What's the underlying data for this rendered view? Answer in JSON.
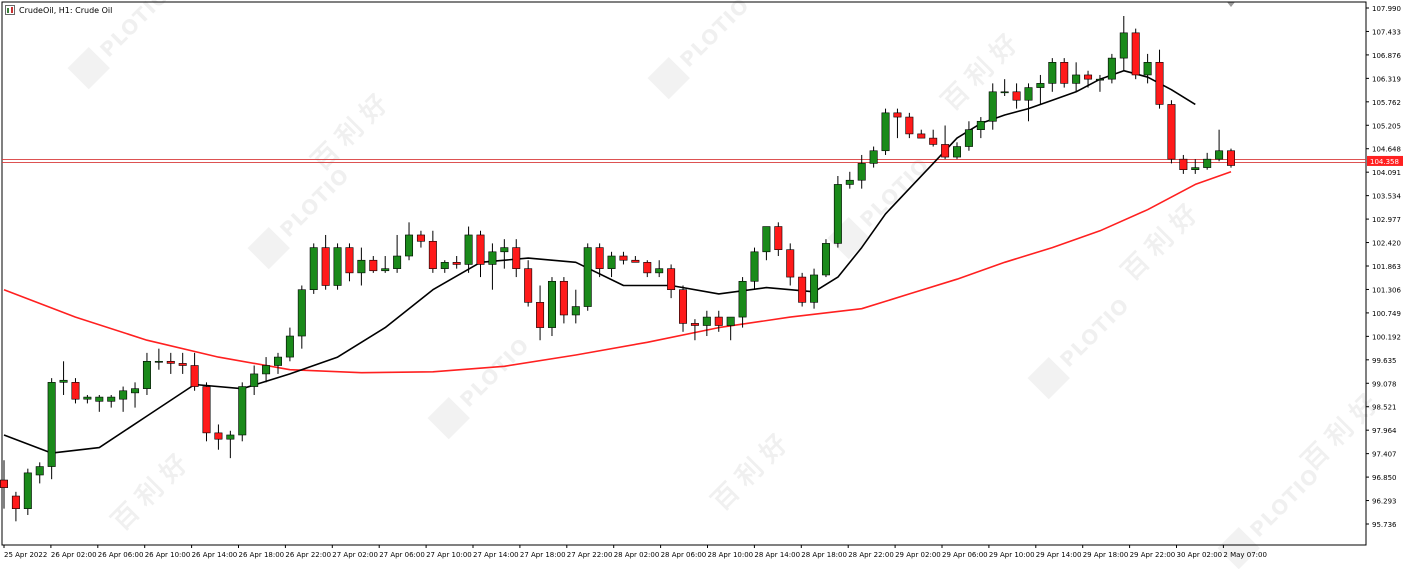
{
  "window": {
    "title": "CrudeOil, H1:  Crude Oil"
  },
  "watermarks": {
    "brand": "PLOTIO",
    "chinese": "百利好"
  },
  "colors": {
    "bull": "#1a8a1a",
    "bear": "#ff1a1a",
    "ma_fast": "#000000",
    "ma_slow": "#ff2020",
    "price_line": "#d83a3a",
    "grid_text": "#000000",
    "axis": "#000000",
    "bid_label_bg": "#ff2020"
  },
  "chart_data": {
    "type": "candlestick",
    "symbol": "CrudeOil",
    "timeframe": "H1",
    "ylim": [
      95.45,
      107.99
    ],
    "current_price": "104.358",
    "y_ticks": [
      "107.990",
      "107.433",
      "106.876",
      "106.319",
      "105.762",
      "105.205",
      "104.648",
      "104.091",
      "103.534",
      "102.977",
      "102.420",
      "101.863",
      "101.306",
      "100.749",
      "100.192",
      "99.635",
      "99.078",
      "98.521",
      "97.964",
      "97.407",
      "96.850",
      "96.293",
      "95.736"
    ],
    "x_labels": [
      "25 Apr 2022",
      "26 Apr 02:00",
      "26 Apr 06:00",
      "26 Apr 10:00",
      "26 Apr 14:00",
      "26 Apr 18:00",
      "26 Apr 22:00",
      "27 Apr 02:00",
      "27 Apr 06:00",
      "27 Apr 10:00",
      "27 Apr 14:00",
      "27 Apr 18:00",
      "27 Apr 22:00",
      "28 Apr 02:00",
      "28 Apr 06:00",
      "28 Apr 10:00",
      "28 Apr 14:00",
      "28 Apr 18:00",
      "28 Apr 22:00",
      "29 Apr 02:00",
      "29 Apr 06:00",
      "29 Apr 10:00",
      "29 Apr 14:00",
      "29 Apr 18:00",
      "29 Apr 22:00",
      "30 Apr 02:00",
      "2 May 07:00"
    ],
    "candles": [
      [
        96.78,
        97.25,
        96.1,
        96.6
      ],
      [
        96.4,
        96.5,
        95.8,
        96.1
      ],
      [
        96.1,
        97.05,
        95.95,
        96.95
      ],
      [
        96.9,
        97.2,
        96.7,
        97.1
      ],
      [
        97.1,
        99.2,
        96.8,
        99.1
      ],
      [
        99.1,
        99.6,
        98.8,
        99.15
      ],
      [
        99.1,
        99.2,
        98.6,
        98.7
      ],
      [
        98.7,
        98.8,
        98.6,
        98.75
      ],
      [
        98.65,
        98.8,
        98.4,
        98.75
      ],
      [
        98.65,
        98.8,
        98.5,
        98.75
      ],
      [
        98.7,
        99.0,
        98.4,
        98.9
      ],
      [
        98.85,
        99.1,
        98.5,
        98.95
      ],
      [
        98.95,
        99.8,
        98.8,
        99.6
      ],
      [
        99.6,
        99.9,
        99.4,
        99.6
      ],
      [
        99.6,
        99.8,
        99.3,
        99.55
      ],
      [
        99.55,
        99.8,
        99.3,
        99.5
      ],
      [
        99.5,
        99.8,
        98.9,
        99.0
      ],
      [
        99.0,
        99.1,
        97.7,
        97.9
      ],
      [
        97.9,
        98.1,
        97.5,
        97.75
      ],
      [
        97.75,
        97.95,
        97.3,
        97.85
      ],
      [
        97.85,
        99.1,
        97.7,
        99.0
      ],
      [
        99.0,
        99.5,
        98.8,
        99.3
      ],
      [
        99.3,
        99.7,
        99.1,
        99.5
      ],
      [
        99.5,
        99.8,
        99.3,
        99.7
      ],
      [
        99.7,
        100.4,
        99.6,
        100.2
      ],
      [
        100.2,
        101.4,
        99.9,
        101.3
      ],
      [
        101.3,
        102.4,
        101.2,
        102.3
      ],
      [
        102.3,
        102.6,
        101.3,
        101.4
      ],
      [
        101.4,
        102.4,
        101.3,
        102.3
      ],
      [
        102.3,
        102.4,
        101.5,
        101.7
      ],
      [
        101.7,
        102.3,
        101.4,
        102.0
      ],
      [
        102.0,
        102.1,
        101.7,
        101.75
      ],
      [
        101.75,
        102.1,
        101.7,
        101.8
      ],
      [
        101.8,
        102.6,
        101.7,
        102.1
      ],
      [
        102.1,
        102.9,
        102.0,
        102.6
      ],
      [
        102.6,
        102.7,
        102.3,
        102.45
      ],
      [
        102.45,
        102.7,
        101.7,
        101.8
      ],
      [
        101.8,
        102.0,
        101.7,
        101.95
      ],
      [
        101.95,
        102.1,
        101.8,
        101.9
      ],
      [
        101.9,
        102.8,
        101.7,
        102.6
      ],
      [
        102.6,
        102.7,
        101.6,
        101.9
      ],
      [
        101.9,
        102.4,
        101.3,
        102.2
      ],
      [
        102.2,
        102.5,
        101.8,
        102.3
      ],
      [
        102.3,
        102.5,
        101.6,
        101.8
      ],
      [
        101.8,
        102.0,
        100.9,
        101.0
      ],
      [
        101.0,
        101.4,
        100.1,
        100.4
      ],
      [
        100.4,
        101.6,
        100.2,
        101.5
      ],
      [
        101.5,
        101.6,
        100.5,
        100.7
      ],
      [
        100.7,
        101.3,
        100.5,
        100.9
      ],
      [
        100.9,
        102.4,
        100.8,
        102.3
      ],
      [
        102.3,
        102.4,
        101.6,
        101.8
      ],
      [
        101.8,
        102.2,
        101.6,
        102.1
      ],
      [
        102.1,
        102.2,
        101.9,
        102.0
      ],
      [
        102.0,
        102.1,
        101.95,
        101.95
      ],
      [
        101.95,
        102.0,
        101.6,
        101.7
      ],
      [
        101.7,
        102.0,
        101.6,
        101.8
      ],
      [
        101.8,
        101.9,
        101.1,
        101.3
      ],
      [
        101.3,
        101.4,
        100.3,
        100.5
      ],
      [
        100.5,
        100.6,
        100.1,
        100.45
      ],
      [
        100.45,
        100.8,
        100.2,
        100.65
      ],
      [
        100.65,
        100.8,
        100.3,
        100.45
      ],
      [
        100.45,
        100.6,
        100.1,
        100.65
      ],
      [
        100.65,
        101.6,
        100.4,
        101.5
      ],
      [
        101.5,
        102.3,
        101.3,
        102.2
      ],
      [
        102.2,
        102.8,
        102.0,
        102.8
      ],
      [
        102.8,
        102.9,
        102.1,
        102.25
      ],
      [
        102.25,
        102.4,
        101.4,
        101.6
      ],
      [
        101.6,
        101.7,
        100.9,
        101.0
      ],
      [
        101.0,
        101.8,
        100.85,
        101.65
      ],
      [
        101.65,
        102.5,
        101.6,
        102.4
      ],
      [
        102.4,
        104.0,
        102.3,
        103.8
      ],
      [
        103.8,
        104.1,
        103.7,
        103.9
      ],
      [
        103.9,
        104.5,
        103.7,
        104.3
      ],
      [
        104.3,
        104.7,
        104.2,
        104.6
      ],
      [
        104.6,
        105.6,
        104.5,
        105.5
      ],
      [
        105.5,
        105.6,
        104.9,
        105.4
      ],
      [
        105.4,
        105.5,
        104.9,
        105.0
      ],
      [
        105.0,
        105.1,
        104.9,
        104.9
      ],
      [
        104.9,
        105.1,
        104.7,
        104.75
      ],
      [
        104.75,
        105.2,
        104.4,
        104.45
      ],
      [
        104.45,
        104.8,
        104.4,
        104.7
      ],
      [
        104.7,
        105.3,
        104.6,
        105.1
      ],
      [
        105.1,
        105.4,
        104.9,
        105.3
      ],
      [
        105.3,
        106.2,
        105.1,
        106.0
      ],
      [
        106.0,
        106.3,
        105.9,
        106.0
      ],
      [
        106.0,
        106.2,
        105.6,
        105.8
      ],
      [
        105.8,
        106.2,
        105.3,
        106.1
      ],
      [
        106.1,
        106.4,
        105.7,
        106.2
      ],
      [
        106.2,
        106.8,
        106.0,
        106.7
      ],
      [
        106.7,
        106.8,
        106.1,
        106.2
      ],
      [
        106.2,
        106.7,
        106.0,
        106.4
      ],
      [
        106.4,
        106.5,
        106.1,
        106.3
      ],
      [
        106.3,
        106.4,
        106.0,
        106.3
      ],
      [
        106.3,
        106.9,
        106.2,
        106.8
      ],
      [
        106.8,
        107.8,
        106.5,
        107.4
      ],
      [
        107.4,
        107.5,
        106.3,
        106.4
      ],
      [
        106.4,
        106.9,
        106.2,
        106.7
      ],
      [
        106.7,
        107.0,
        105.6,
        105.7
      ],
      [
        105.7,
        105.8,
        104.3,
        104.4
      ],
      [
        104.4,
        104.5,
        104.05,
        104.15
      ],
      [
        104.15,
        104.4,
        104.05,
        104.2
      ],
      [
        104.2,
        104.55,
        104.15,
        104.4
      ],
      [
        104.4,
        105.1,
        104.35,
        104.6
      ],
      [
        104.6,
        104.65,
        104.2,
        104.25
      ]
    ],
    "ma_fast": [
      [
        0,
        97.85
      ],
      [
        4,
        97.42
      ],
      [
        8,
        97.55
      ],
      [
        12,
        98.3
      ],
      [
        16,
        99.05
      ],
      [
        20,
        98.95
      ],
      [
        24,
        99.3
      ],
      [
        28,
        99.7
      ],
      [
        32,
        100.4
      ],
      [
        36,
        101.3
      ],
      [
        40,
        101.95
      ],
      [
        44,
        102.05
      ],
      [
        48,
        101.95
      ],
      [
        52,
        101.4
      ],
      [
        56,
        101.4
      ],
      [
        60,
        101.2
      ],
      [
        64,
        101.35
      ],
      [
        68,
        101.25
      ],
      [
        70,
        101.6
      ],
      [
        72,
        102.3
      ],
      [
        74,
        103.1
      ],
      [
        76,
        103.7
      ],
      [
        78,
        104.3
      ],
      [
        80,
        104.9
      ],
      [
        82,
        105.25
      ],
      [
        84,
        105.45
      ],
      [
        86,
        105.6
      ],
      [
        88,
        105.8
      ],
      [
        90,
        106.0
      ],
      [
        92,
        106.3
      ],
      [
        94,
        106.5
      ],
      [
        96,
        106.35
      ],
      [
        98,
        106.05
      ],
      [
        100,
        105.7
      ]
    ],
    "ma_slow": [
      [
        0,
        101.3
      ],
      [
        6,
        100.65
      ],
      [
        12,
        100.1
      ],
      [
        18,
        99.7
      ],
      [
        24,
        99.4
      ],
      [
        30,
        99.33
      ],
      [
        36,
        99.35
      ],
      [
        42,
        99.48
      ],
      [
        48,
        99.75
      ],
      [
        54,
        100.05
      ],
      [
        60,
        100.4
      ],
      [
        66,
        100.65
      ],
      [
        72,
        100.85
      ],
      [
        76,
        101.2
      ],
      [
        80,
        101.55
      ],
      [
        84,
        101.95
      ],
      [
        88,
        102.3
      ],
      [
        92,
        102.7
      ],
      [
        96,
        103.2
      ],
      [
        100,
        103.8
      ],
      [
        103,
        104.1
      ]
    ]
  }
}
